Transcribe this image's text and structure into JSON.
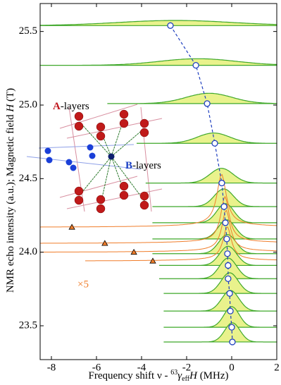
{
  "chart_data": {
    "type": "nmr-spectra",
    "xlabel_parts": [
      "Frequency shift  ν - ",
      "63",
      "γ",
      "eff",
      "H",
      " (MHz)"
    ],
    "ylabel_parts": [
      "NMR echo intensity  (a.u.);  Magnetic field  ",
      "H",
      "  (T)"
    ],
    "xlim": [
      -8.5,
      2
    ],
    "ylim": [
      23.27,
      25.69
    ],
    "xticks": [
      -8,
      -6,
      -4,
      -2,
      0,
      2
    ],
    "yticks": [
      23.5,
      {
        "value": 24,
        "label": "24.0"
      },
      24.5,
      {
        "value": 25,
        "label": "25.0"
      },
      25.5
    ],
    "peak_positions": {
      "color": "#1f3fbf",
      "x": [
        -2.72,
        -1.59,
        -1.09,
        -0.75,
        -0.44,
        -0.34,
        -0.28,
        -0.22,
        -0.19,
        -0.16,
        -0.16,
        -0.09,
        -0.06,
        0.0,
        0.03
      ],
      "y": [
        25.54,
        25.27,
        25.01,
        24.74,
        24.47,
        24.31,
        24.2,
        24.09,
        23.99,
        23.91,
        23.82,
        23.72,
        23.6,
        23.49,
        23.39
      ]
    },
    "spectra": {
      "color": "#3fa82a",
      "fill": "#e9f28c",
      "items": [
        {
          "field": 25.54,
          "center": -2.5,
          "width": 6,
          "amplitude": 0.035,
          "from": -8.5
        },
        {
          "field": 25.27,
          "center": -1.5,
          "width": 4,
          "amplitude": 0.045,
          "from": -8.5
        },
        {
          "field": 25.01,
          "center": -1.0,
          "width": 2.4,
          "amplitude": 0.07,
          "from": -5.5
        },
        {
          "field": 24.74,
          "center": -0.8,
          "width": 1.7,
          "amplitude": 0.07,
          "from": -4.2
        },
        {
          "field": 24.47,
          "center": -0.45,
          "width": 1.2,
          "amplitude": 0.1,
          "from": -3.8
        },
        {
          "field": 24.31,
          "center": -0.35,
          "width": 1.0,
          "amplitude": 0.12,
          "from": -3.5
        },
        {
          "field": 24.2,
          "center": -0.28,
          "width": 0.9,
          "amplitude": 0.13,
          "from": -3.5
        },
        {
          "field": 24.09,
          "center": -0.22,
          "width": 0.9,
          "amplitude": 0.13,
          "from": -3.5
        },
        {
          "field": 23.99,
          "center": -0.19,
          "width": 0.9,
          "amplitude": 0.13,
          "from": -3.5
        },
        {
          "field": 23.91,
          "center": -0.16,
          "width": 0.9,
          "amplitude": 0.13,
          "from": -3.2
        },
        {
          "field": 23.82,
          "center": -0.16,
          "width": 0.9,
          "amplitude": 0.14,
          "from": -3.2
        },
        {
          "field": 23.72,
          "center": -0.09,
          "width": 0.9,
          "amplitude": 0.14,
          "from": -3.0
        },
        {
          "field": 23.6,
          "center": -0.06,
          "width": 0.9,
          "amplitude": 0.14,
          "from": -3.0
        },
        {
          "field": 23.49,
          "center": 0.0,
          "width": 0.8,
          "amplitude": 0.14,
          "from": -3.0
        },
        {
          "field": 23.39,
          "center": 0.03,
          "width": 0.8,
          "amplitude": 0.13,
          "from": -3.0
        }
      ]
    },
    "magnified": {
      "label": "×5",
      "color": "#f07d2a",
      "items": [
        {
          "field": 24.17,
          "center": -0.45,
          "width": 0.5,
          "amplitude": 0.34,
          "from": -8.5
        },
        {
          "field": 24.06,
          "center": -0.3,
          "width": 0.45,
          "amplitude": 0.3,
          "from": -8.5
        },
        {
          "field": 24.0,
          "center": -0.25,
          "width": 0.45,
          "amplitude": 0.27,
          "from": -8.5
        },
        {
          "field": 23.94,
          "center": -0.2,
          "width": 0.45,
          "amplitude": 0.22,
          "from": -6.5
        }
      ],
      "markers": {
        "x": [
          -7.09,
          -5.63,
          -4.34,
          -3.5
        ],
        "y": [
          24.17,
          24.06,
          24.0,
          23.94
        ]
      }
    },
    "inset_labels": [
      {
        "letter": "A",
        "rest": "-layers",
        "color": "#c0161d"
      },
      {
        "letter": "B",
        "rest": "-layers",
        "color": "#1a3fc4"
      }
    ]
  }
}
